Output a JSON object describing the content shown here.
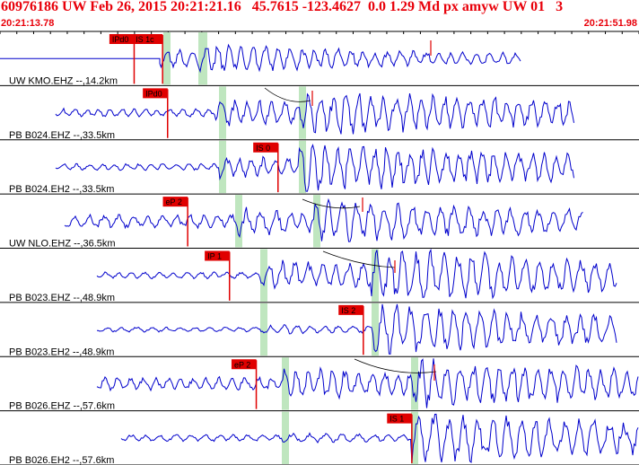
{
  "header": {
    "title": "60976186 UW Feb 26, 2015 20:21:21.16   45.7615 -123.4627  0.0 1.29 Md px amyw UW 01   3",
    "start_time": "20:21:13.78",
    "end_time": "20:21:51.98"
  },
  "colors": {
    "trace": "#0000cc",
    "pick": "#e00000",
    "window": "#bfe6bf",
    "header": "#e8000a"
  },
  "chart_data": {
    "type": "seismogram",
    "time_range": [
      "20:21:13.78",
      "20:21:51.98"
    ],
    "traces": [
      {
        "label": "UW KMO.EHZ --,14.2km",
        "picks": [
          {
            "label": "IPd0",
            "time": "20:21:21.8"
          },
          {
            "label": "IS 1c",
            "time": "20:21:23.5"
          }
        ]
      },
      {
        "label": "PB B024.EHZ --,33.5km",
        "picks": [
          {
            "label": "IPd0",
            "time": "20:21:23.8"
          }
        ]
      },
      {
        "label": "PB B024.EH2 --,33.5km",
        "picks": [
          {
            "label": "IS 0",
            "time": "20:21:30.4"
          }
        ]
      },
      {
        "label": "UW NLO.EHZ --,36.5km",
        "picks": [
          {
            "label": "eP 2",
            "time": "20:21:25.0"
          }
        ]
      },
      {
        "label": "PB B023.EHZ --,48.9km",
        "picks": [
          {
            "label": "IP 1",
            "time": "20:21:27.5"
          }
        ]
      },
      {
        "label": "PB B023.EH2 --,48.9km",
        "picks": [
          {
            "label": "IS 2",
            "time": "20:21:35.5"
          }
        ]
      },
      {
        "label": "PB B026.EHZ --,57.6km",
        "picks": [
          {
            "label": "eP 2",
            "time": "20:21:29.1"
          }
        ]
      },
      {
        "label": "PB B026.EH2 --,57.6km",
        "picks": [
          {
            "label": "IS 1",
            "time": "20:21:38.4"
          }
        ]
      }
    ]
  }
}
